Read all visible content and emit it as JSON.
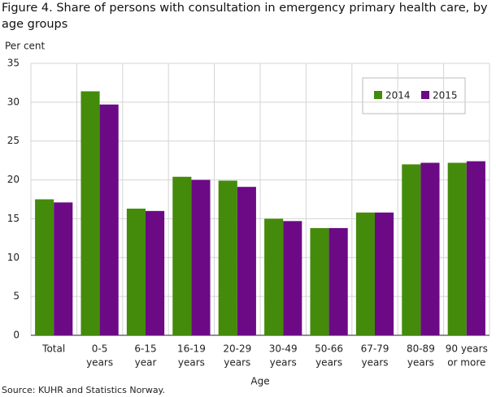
{
  "chart_data": {
    "type": "bar",
    "title": "Figure 4. Share of persons with consultation in emergency primary health care, by age groups",
    "y_label": "Per cent",
    "x_label": "Age",
    "source": "Source: KUHR and Statistics Norway.",
    "categories": [
      [
        "Total"
      ],
      [
        "0-5",
        "years"
      ],
      [
        "6-15",
        "year"
      ],
      [
        "16-19",
        "years"
      ],
      [
        "20-29",
        "years"
      ],
      [
        "30-49",
        "years"
      ],
      [
        "50-66",
        "years"
      ],
      [
        "67-79",
        "years"
      ],
      [
        "80-89",
        "years"
      ],
      [
        "90 years",
        "or more"
      ]
    ],
    "series": [
      {
        "name": "2014",
        "color": "#448b0c",
        "values": [
          17.5,
          31.4,
          16.3,
          20.4,
          19.9,
          15.0,
          13.8,
          15.8,
          22.0,
          22.2
        ]
      },
      {
        "name": "2015",
        "color": "#6c0a86",
        "values": [
          17.1,
          29.7,
          16.0,
          20.0,
          19.1,
          14.7,
          13.8,
          15.8,
          22.2,
          22.4
        ]
      }
    ],
    "ylim": [
      0,
      35
    ],
    "yticks": [
      0,
      5,
      10,
      15,
      20,
      25,
      30,
      35
    ],
    "grid": true
  }
}
